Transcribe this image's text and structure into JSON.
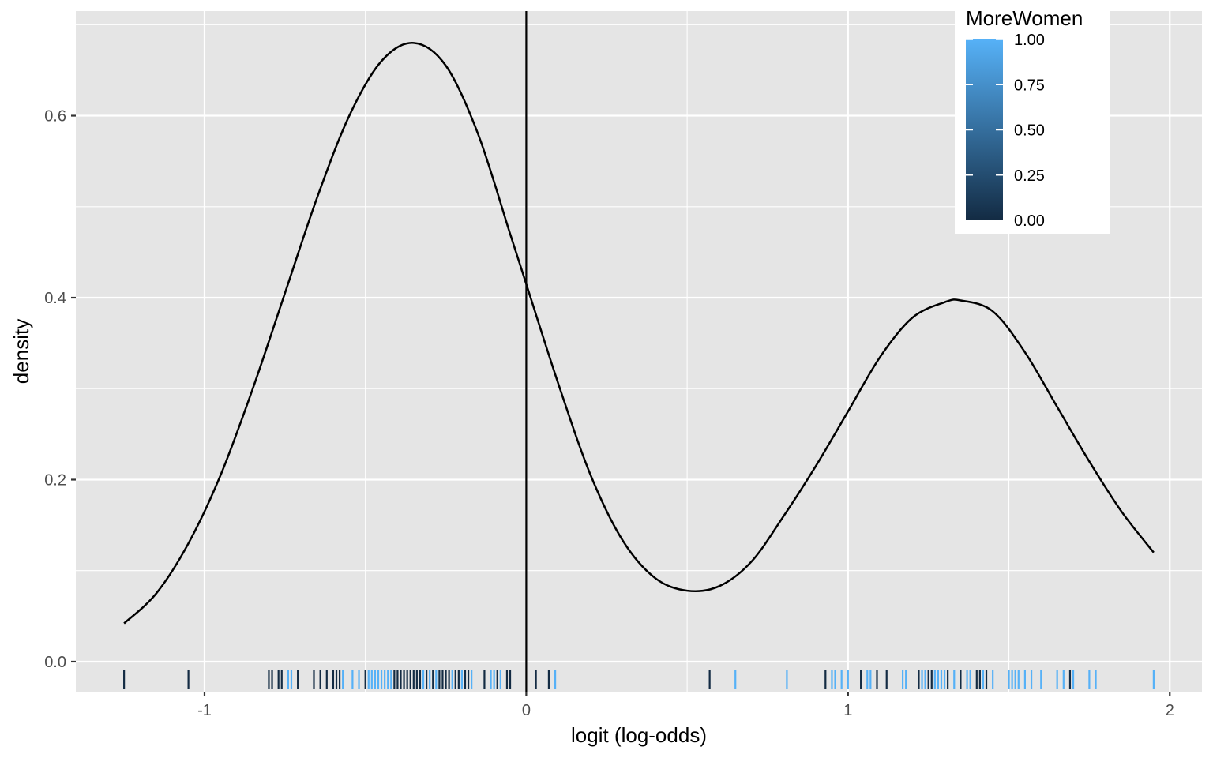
{
  "chart_data": {
    "type": "line",
    "title": "",
    "xlabel": "logit (log-odds)",
    "ylabel": "density",
    "xlim": [
      -1.4,
      2.1
    ],
    "ylim": [
      -0.033,
      0.715
    ],
    "x_ticks": [
      -1,
      0,
      1,
      2
    ],
    "x_tick_labels": [
      "-1",
      "0",
      "1",
      "2"
    ],
    "y_ticks": [
      0.0,
      0.2,
      0.4,
      0.6
    ],
    "y_tick_labels": [
      "0.0",
      "0.2",
      "0.4",
      "0.6"
    ],
    "grid": true,
    "panel_background": "#e5e5e5",
    "grid_color": "#ffffff",
    "reference_line": {
      "orientation": "vertical",
      "x": 0,
      "color": "#000000"
    },
    "series": [
      {
        "type": "density",
        "color": "#000000",
        "x": [
          -1.25,
          -1.15,
          -1.05,
          -0.95,
          -0.85,
          -0.75,
          -0.65,
          -0.55,
          -0.45,
          -0.35,
          -0.25,
          -0.15,
          -0.05,
          0.0,
          0.1,
          0.2,
          0.3,
          0.4,
          0.5,
          0.6,
          0.7,
          0.8,
          0.9,
          1.0,
          1.1,
          1.2,
          1.3,
          1.35,
          1.45,
          1.55,
          1.65,
          1.75,
          1.85,
          1.95
        ],
        "y": [
          0.042,
          0.075,
          0.13,
          0.205,
          0.3,
          0.405,
          0.51,
          0.6,
          0.66,
          0.68,
          0.655,
          0.58,
          0.47,
          0.415,
          0.305,
          0.205,
          0.133,
          0.092,
          0.078,
          0.083,
          0.11,
          0.16,
          0.215,
          0.275,
          0.335,
          0.378,
          0.395,
          0.397,
          0.385,
          0.34,
          0.28,
          0.22,
          0.165,
          0.12
        ]
      }
    ],
    "rug": {
      "color_variable": "MoreWomen",
      "points": [
        {
          "x": -1.25,
          "v": 0
        },
        {
          "x": -1.05,
          "v": 0
        },
        {
          "x": -0.8,
          "v": 0
        },
        {
          "x": -0.79,
          "v": 0
        },
        {
          "x": -0.77,
          "v": 0
        },
        {
          "x": -0.76,
          "v": 0
        },
        {
          "x": -0.74,
          "v": 1
        },
        {
          "x": -0.73,
          "v": 1
        },
        {
          "x": -0.71,
          "v": 0
        },
        {
          "x": -0.66,
          "v": 0
        },
        {
          "x": -0.64,
          "v": 0
        },
        {
          "x": -0.62,
          "v": 0
        },
        {
          "x": -0.6,
          "v": 0
        },
        {
          "x": -0.59,
          "v": 0
        },
        {
          "x": -0.58,
          "v": 0
        },
        {
          "x": -0.57,
          "v": 1
        },
        {
          "x": -0.54,
          "v": 1
        },
        {
          "x": -0.52,
          "v": 1
        },
        {
          "x": -0.5,
          "v": 0
        },
        {
          "x": -0.49,
          "v": 1
        },
        {
          "x": -0.48,
          "v": 1
        },
        {
          "x": -0.47,
          "v": 1
        },
        {
          "x": -0.46,
          "v": 1
        },
        {
          "x": -0.45,
          "v": 1
        },
        {
          "x": -0.44,
          "v": 1
        },
        {
          "x": -0.43,
          "v": 1
        },
        {
          "x": -0.42,
          "v": 1
        },
        {
          "x": -0.41,
          "v": 0
        },
        {
          "x": -0.4,
          "v": 0
        },
        {
          "x": -0.39,
          "v": 0
        },
        {
          "x": -0.38,
          "v": 0
        },
        {
          "x": -0.37,
          "v": 0
        },
        {
          "x": -0.36,
          "v": 0
        },
        {
          "x": -0.35,
          "v": 0
        },
        {
          "x": -0.34,
          "v": 0
        },
        {
          "x": -0.33,
          "v": 0
        },
        {
          "x": -0.32,
          "v": 1
        },
        {
          "x": -0.31,
          "v": 0
        },
        {
          "x": -0.3,
          "v": 1
        },
        {
          "x": -0.29,
          "v": 0
        },
        {
          "x": -0.28,
          "v": 1
        },
        {
          "x": -0.27,
          "v": 0
        },
        {
          "x": -0.26,
          "v": 0
        },
        {
          "x": -0.25,
          "v": 0
        },
        {
          "x": -0.24,
          "v": 0
        },
        {
          "x": -0.23,
          "v": 1
        },
        {
          "x": -0.22,
          "v": 0
        },
        {
          "x": -0.21,
          "v": 0
        },
        {
          "x": -0.2,
          "v": 1
        },
        {
          "x": -0.19,
          "v": 0
        },
        {
          "x": -0.18,
          "v": 0
        },
        {
          "x": -0.17,
          "v": 1
        },
        {
          "x": -0.13,
          "v": 0
        },
        {
          "x": -0.11,
          "v": 1
        },
        {
          "x": -0.1,
          "v": 1
        },
        {
          "x": -0.09,
          "v": 0
        },
        {
          "x": -0.08,
          "v": 1
        },
        {
          "x": -0.06,
          "v": 0
        },
        {
          "x": -0.05,
          "v": 0
        },
        {
          "x": 0.03,
          "v": 0
        },
        {
          "x": 0.07,
          "v": 0
        },
        {
          "x": 0.09,
          "v": 1
        },
        {
          "x": 0.57,
          "v": 0
        },
        {
          "x": 0.65,
          "v": 1
        },
        {
          "x": 0.81,
          "v": 1
        },
        {
          "x": 0.93,
          "v": 0
        },
        {
          "x": 0.95,
          "v": 1
        },
        {
          "x": 0.96,
          "v": 1
        },
        {
          "x": 0.98,
          "v": 1
        },
        {
          "x": 1.0,
          "v": 1
        },
        {
          "x": 1.04,
          "v": 0
        },
        {
          "x": 1.06,
          "v": 1
        },
        {
          "x": 1.07,
          "v": 1
        },
        {
          "x": 1.09,
          "v": 0
        },
        {
          "x": 1.12,
          "v": 0
        },
        {
          "x": 1.17,
          "v": 1
        },
        {
          "x": 1.18,
          "v": 1
        },
        {
          "x": 1.22,
          "v": 0
        },
        {
          "x": 1.23,
          "v": 1
        },
        {
          "x": 1.24,
          "v": 1
        },
        {
          "x": 1.25,
          "v": 0
        },
        {
          "x": 1.26,
          "v": 0
        },
        {
          "x": 1.27,
          "v": 1
        },
        {
          "x": 1.28,
          "v": 1
        },
        {
          "x": 1.29,
          "v": 1
        },
        {
          "x": 1.3,
          "v": 1
        },
        {
          "x": 1.31,
          "v": 0
        },
        {
          "x": 1.33,
          "v": 1
        },
        {
          "x": 1.35,
          "v": 0
        },
        {
          "x": 1.37,
          "v": 1
        },
        {
          "x": 1.38,
          "v": 1
        },
        {
          "x": 1.4,
          "v": 0
        },
        {
          "x": 1.41,
          "v": 0
        },
        {
          "x": 1.42,
          "v": 1
        },
        {
          "x": 1.43,
          "v": 0
        },
        {
          "x": 1.45,
          "v": 1
        },
        {
          "x": 1.5,
          "v": 1
        },
        {
          "x": 1.51,
          "v": 1
        },
        {
          "x": 1.52,
          "v": 1
        },
        {
          "x": 1.53,
          "v": 1
        },
        {
          "x": 1.55,
          "v": 1
        },
        {
          "x": 1.57,
          "v": 1
        },
        {
          "x": 1.6,
          "v": 1
        },
        {
          "x": 1.65,
          "v": 1
        },
        {
          "x": 1.67,
          "v": 1
        },
        {
          "x": 1.69,
          "v": 0
        },
        {
          "x": 1.7,
          "v": 1
        },
        {
          "x": 1.75,
          "v": 1
        },
        {
          "x": 1.77,
          "v": 1
        },
        {
          "x": 1.95,
          "v": 1
        }
      ]
    },
    "legend": {
      "title": "MoreWomen",
      "position": "top-right",
      "type": "colorbar",
      "low_color": "#132b43",
      "high_color": "#56b1f7",
      "breaks": [
        1.0,
        0.75,
        0.5,
        0.25,
        0.0
      ],
      "labels": [
        "1.00",
        "0.75",
        "0.50",
        "0.25",
        "0.00"
      ]
    }
  }
}
